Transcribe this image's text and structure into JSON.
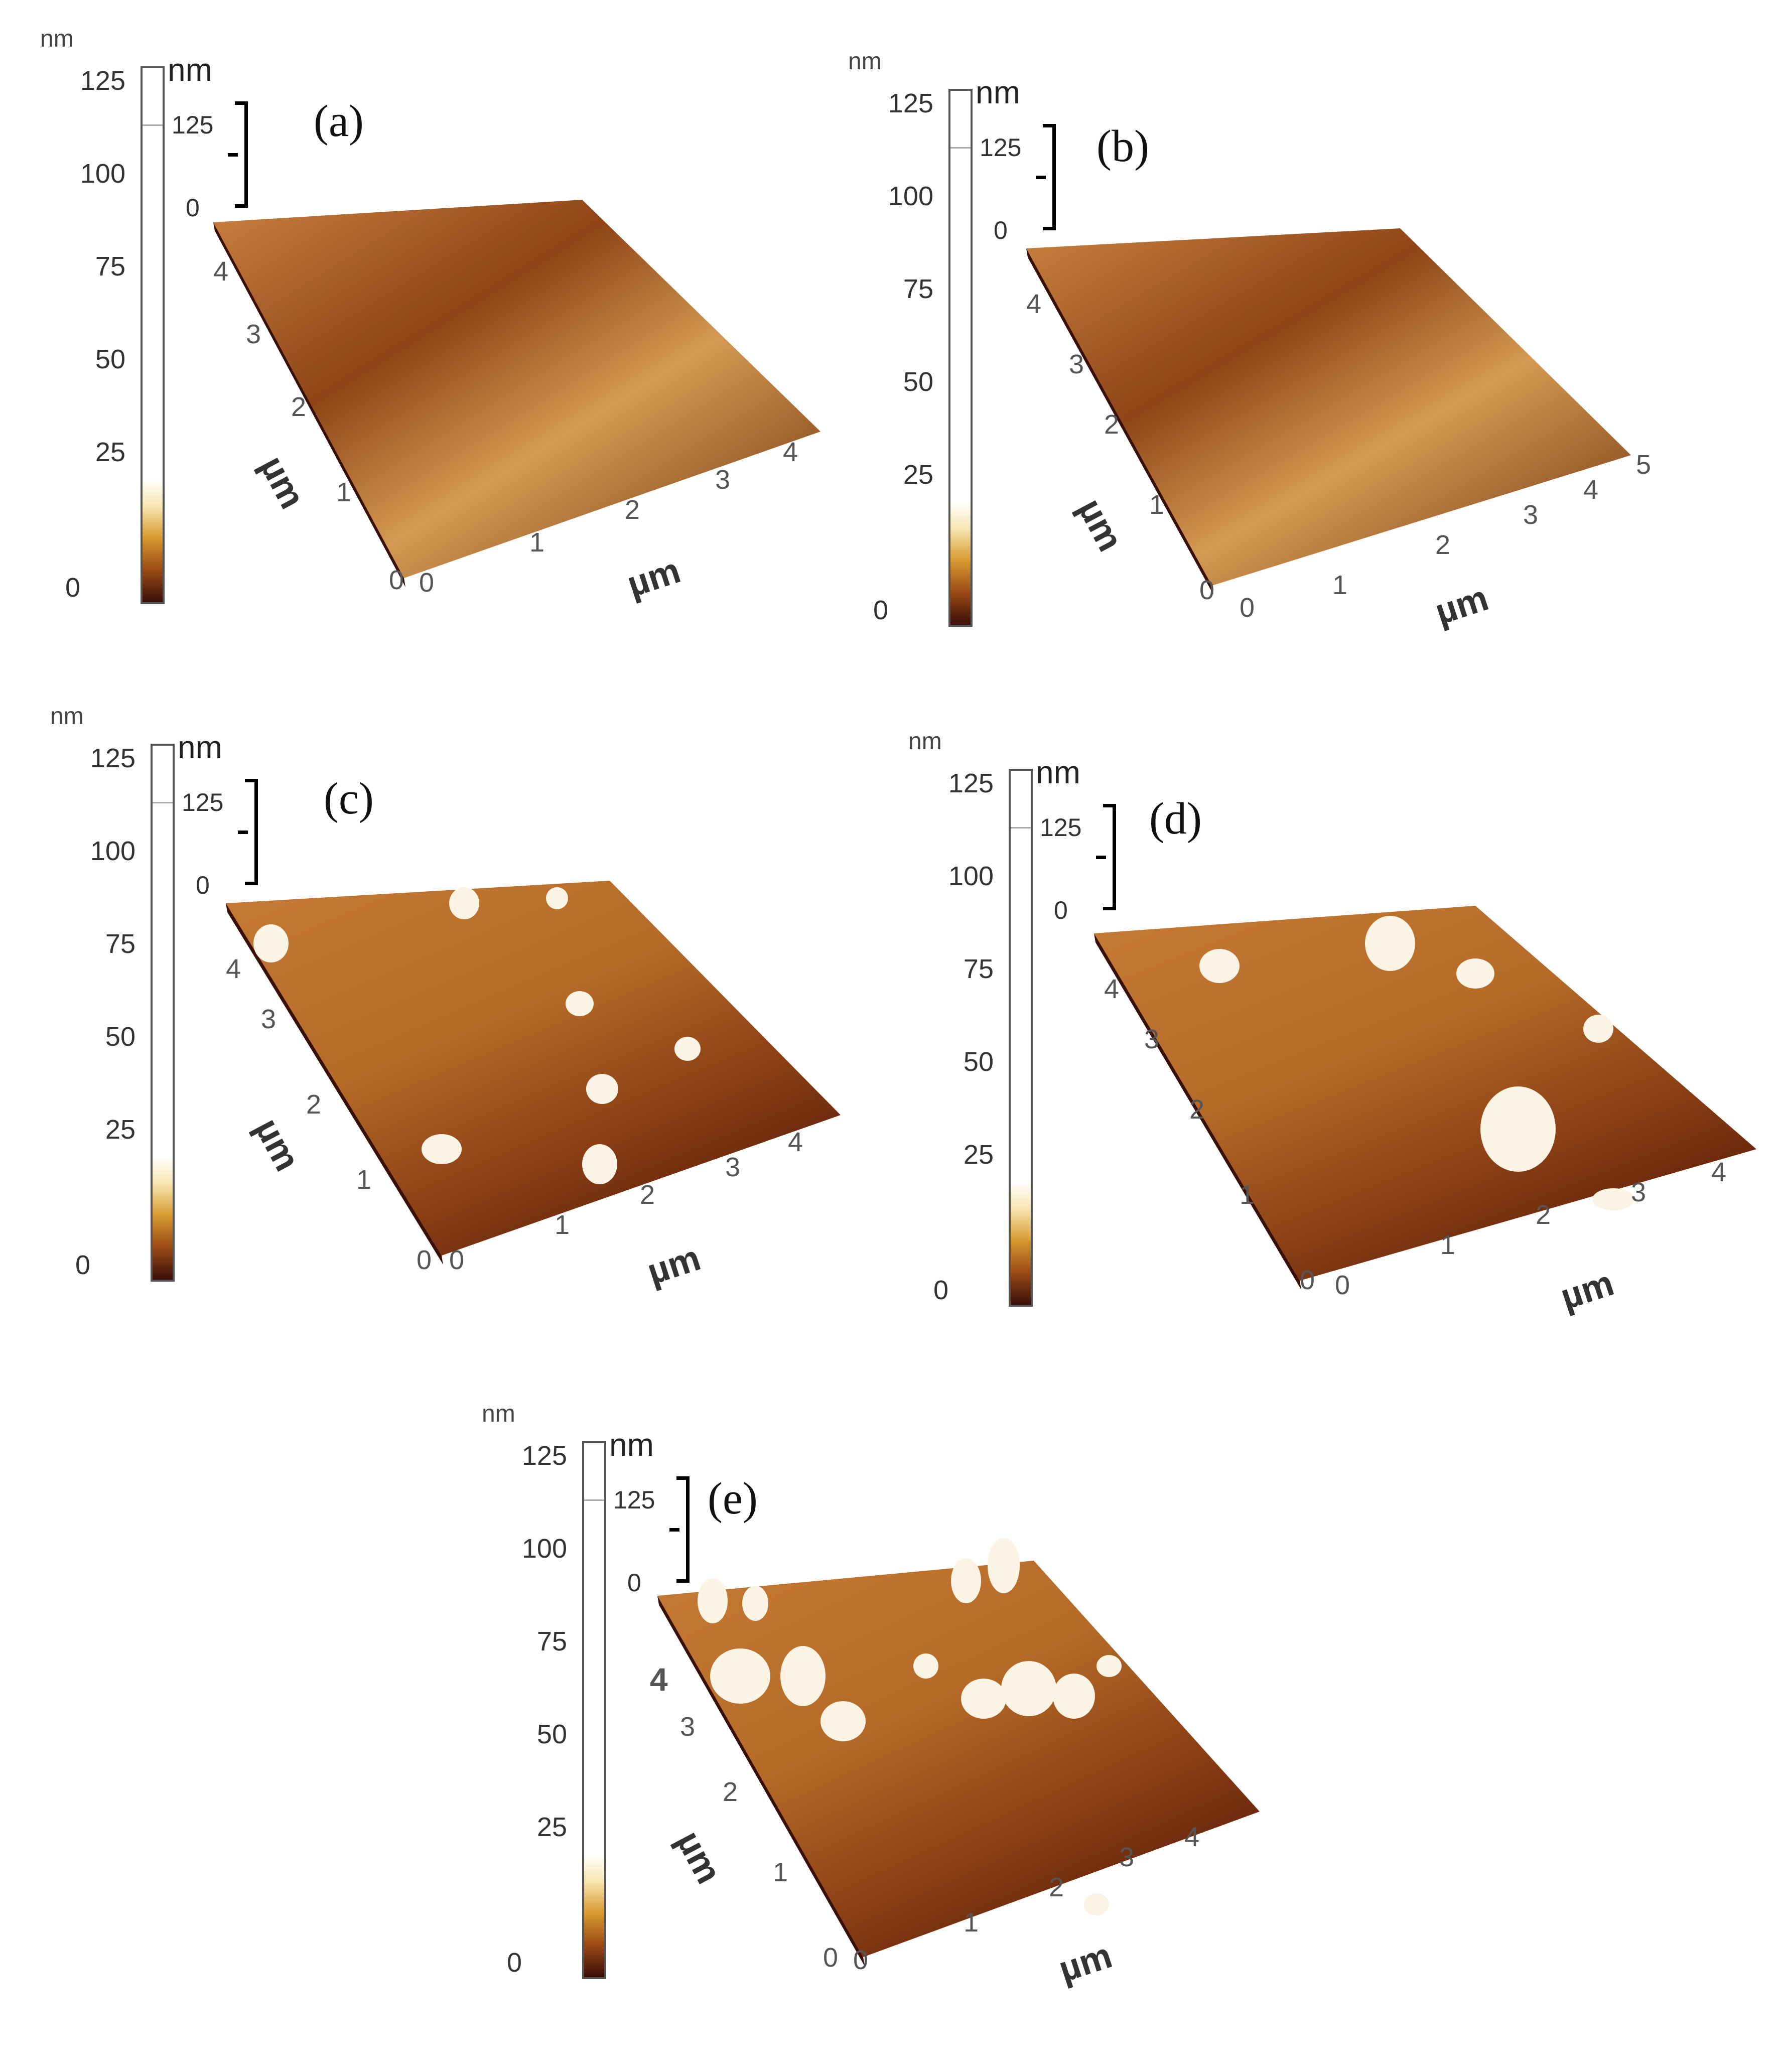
{
  "panels": [
    {
      "id": "a",
      "label": "(a)",
      "colorbar": {
        "unit_top": "nm",
        "unit": "nm",
        "ticks": [
          "125",
          "100",
          "75",
          "50",
          "25",
          "0"
        ]
      },
      "z_scale": {
        "top": "125",
        "bottom": "0"
      },
      "x_axis": {
        "title": "µm",
        "ticks": [
          "0",
          "1",
          "2",
          "3",
          "4"
        ]
      },
      "y_axis": {
        "title": "µm",
        "ticks": [
          "0",
          "1",
          "2",
          "3",
          "4"
        ]
      }
    },
    {
      "id": "b",
      "label": "(b)",
      "colorbar": {
        "unit_top": "nm",
        "unit": "nm",
        "ticks": [
          "125",
          "100",
          "75",
          "50",
          "25",
          "0"
        ]
      },
      "z_scale": {
        "top": "125",
        "bottom": "0"
      },
      "x_axis": {
        "title": "µm",
        "ticks": [
          "0",
          "1",
          "2",
          "3",
          "4",
          "5"
        ]
      },
      "y_axis": {
        "title": "µm",
        "ticks": [
          "0",
          "1",
          "2",
          "3",
          "4"
        ]
      }
    },
    {
      "id": "c",
      "label": "(c)",
      "colorbar": {
        "unit_top": "nm",
        "unit": "nm",
        "ticks": [
          "125",
          "100",
          "75",
          "50",
          "25",
          "0"
        ]
      },
      "z_scale": {
        "top": "125",
        "bottom": "0"
      },
      "x_axis": {
        "title": "µm",
        "ticks": [
          "0",
          "1",
          "2",
          "3",
          "4"
        ]
      },
      "y_axis": {
        "title": "µm",
        "ticks": [
          "0",
          "1",
          "2",
          "3",
          "4"
        ]
      }
    },
    {
      "id": "d",
      "label": "(d)",
      "colorbar": {
        "unit_top": "nm",
        "unit": "nm",
        "ticks": [
          "125",
          "100",
          "75",
          "50",
          "25",
          "0"
        ]
      },
      "z_scale": {
        "top": "125",
        "bottom": "0"
      },
      "x_axis": {
        "title": "µm",
        "ticks": [
          "0",
          "1",
          "2",
          "3",
          "4"
        ]
      },
      "y_axis": {
        "title": "",
        "ticks": [
          "0",
          "1",
          "2",
          "3",
          "4"
        ]
      }
    },
    {
      "id": "e",
      "label": "(e)",
      "colorbar": {
        "unit_top": "nm",
        "unit": "nm",
        "ticks": [
          "125",
          "100",
          "75",
          "50",
          "25",
          "0"
        ]
      },
      "z_scale": {
        "top": "125",
        "bottom": "0"
      },
      "x_axis": {
        "title": "µm",
        "ticks": [
          "0",
          "1",
          "2",
          "3",
          "4"
        ]
      },
      "y_axis": {
        "title": "µm",
        "ticks": [
          "0",
          "1",
          "2",
          "3",
          "4"
        ]
      }
    }
  ],
  "colors": {
    "surface_dark": "#5a1e08",
    "surface_mid": "#a4521a",
    "surface_light": "#e0a050",
    "peak": "#fbf3e4"
  }
}
